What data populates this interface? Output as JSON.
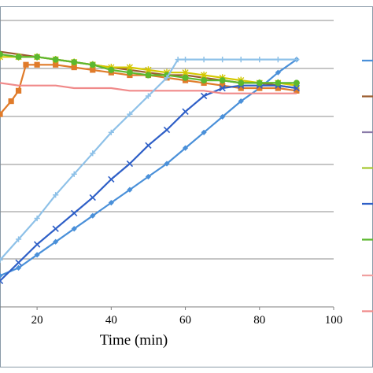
{
  "chart_data": {
    "type": "line",
    "title": "",
    "xlabel": "Time  (min)",
    "ylabel": "",
    "xlim": [
      10,
      100
    ],
    "ylim": [
      0,
      1.1
    ],
    "x_ticks": [
      20,
      40,
      60,
      80,
      100
    ],
    "grid": "horizontal",
    "legend_position": "right (cut off)",
    "series": [
      {
        "color": "#4a90d9",
        "marker": "diamond",
        "x": [
          10,
          15,
          20,
          25,
          30,
          35,
          40,
          45,
          50,
          55,
          60,
          65,
          70,
          75,
          80,
          85,
          90
        ],
        "y": [
          0.12,
          0.15,
          0.2,
          0.25,
          0.3,
          0.35,
          0.4,
          0.45,
          0.5,
          0.55,
          0.61,
          0.67,
          0.73,
          0.79,
          0.84,
          0.9,
          0.95
        ]
      },
      {
        "color": "#9a5c2e",
        "marker": "none",
        "x": [
          10,
          15,
          20,
          25,
          30,
          35,
          40,
          45,
          50,
          55,
          60,
          65,
          70,
          75,
          80,
          85,
          90
        ],
        "y": [
          0.98,
          0.97,
          0.96,
          0.95,
          0.94,
          0.93,
          0.92,
          0.91,
          0.9,
          0.89,
          0.89,
          0.88,
          0.87,
          0.86,
          0.86,
          0.85,
          0.84
        ]
      },
      {
        "color": "#e07b2a",
        "marker": "square",
        "x": [
          10,
          13,
          15,
          17,
          20,
          25,
          30,
          35,
          40,
          45,
          50,
          55,
          60,
          65,
          70,
          75,
          80,
          85,
          90
        ],
        "y": [
          0.74,
          0.79,
          0.83,
          0.93,
          0.93,
          0.93,
          0.92,
          0.91,
          0.9,
          0.89,
          0.89,
          0.88,
          0.87,
          0.86,
          0.85,
          0.84,
          0.84,
          0.84,
          0.83
        ]
      },
      {
        "color": "#d4c800",
        "marker": "asterisk",
        "x": [
          10,
          15,
          20,
          25,
          30,
          35,
          40,
          45,
          50,
          55,
          60,
          65,
          70,
          75,
          80,
          85,
          90
        ],
        "y": [
          0.96,
          0.96,
          0.96,
          0.95,
          0.94,
          0.93,
          0.92,
          0.92,
          0.91,
          0.9,
          0.9,
          0.89,
          0.88,
          0.87,
          0.86,
          0.86,
          0.85
        ]
      },
      {
        "color": "#2e5fc7",
        "marker": "x",
        "x": [
          10,
          15,
          20,
          25,
          30,
          35,
          40,
          45,
          50,
          55,
          60,
          65,
          70,
          75,
          80,
          85,
          90
        ],
        "y": [
          0.1,
          0.17,
          0.24,
          0.3,
          0.36,
          0.42,
          0.49,
          0.55,
          0.62,
          0.68,
          0.75,
          0.81,
          0.84,
          0.85,
          0.85,
          0.85,
          0.84
        ]
      },
      {
        "color": "#5cb82e",
        "marker": "circle",
        "x": [
          10,
          15,
          20,
          25,
          30,
          35,
          40,
          45,
          50,
          55,
          60,
          65,
          70,
          75,
          80,
          85,
          90
        ],
        "y": [
          0.97,
          0.96,
          0.96,
          0.95,
          0.94,
          0.93,
          0.91,
          0.9,
          0.89,
          0.89,
          0.88,
          0.87,
          0.87,
          0.86,
          0.86,
          0.86,
          0.86
        ]
      },
      {
        "color": "#f08a8a",
        "marker": "none",
        "x": [
          10,
          15,
          20,
          25,
          30,
          35,
          40,
          45,
          50,
          55,
          60,
          65,
          70,
          75,
          80,
          85,
          90
        ],
        "y": [
          0.86,
          0.85,
          0.85,
          0.85,
          0.84,
          0.84,
          0.84,
          0.83,
          0.83,
          0.83,
          0.83,
          0.83,
          0.82,
          0.82,
          0.82,
          0.82,
          0.82
        ]
      },
      {
        "color": "#8ec1e8",
        "marker": "plus",
        "x": [
          10,
          15,
          20,
          25,
          30,
          35,
          40,
          45,
          50,
          55,
          58,
          60,
          65,
          70,
          75,
          80,
          85,
          90
        ],
        "y": [
          0.18,
          0.26,
          0.34,
          0.43,
          0.51,
          0.59,
          0.67,
          0.74,
          0.81,
          0.88,
          0.95,
          0.95,
          0.95,
          0.95,
          0.95,
          0.95,
          0.95,
          0.95
        ]
      }
    ],
    "legend_swatch_colors": [
      "#4a90d9",
      "#9a5c2e",
      "#8a7aa8",
      "#a6c832",
      "#2e5fc7",
      "#5cb82e",
      "#f0a0a0",
      "#f08a8a"
    ]
  }
}
